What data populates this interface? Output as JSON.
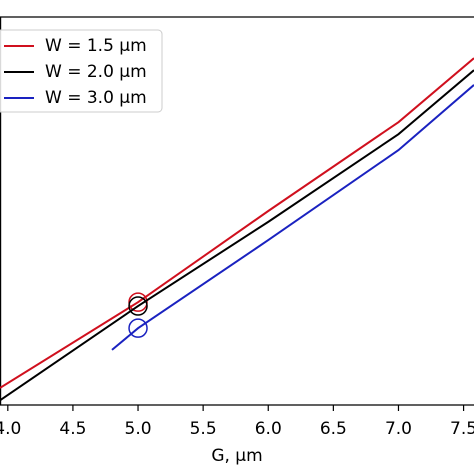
{
  "chart_data": {
    "type": "line",
    "x_label": "G, μm",
    "xlim": [
      3.94,
      7.58
    ],
    "xticks": [
      {
        "value": 4.0,
        "label": "4.0"
      },
      4.5,
      {
        "value": 5.0,
        "label": "5.0"
      },
      5.5,
      {
        "value": 6.0,
        "label": "6.0"
      },
      6.5,
      {
        "value": 7.0,
        "label": "7.0"
      },
      7.5
    ],
    "ylim": [
      0,
      1
    ],
    "highlight_x": 5.0,
    "legend": "upper left",
    "series": [
      {
        "name": "W = 1.5 μm",
        "color": "#d0101e",
        "x": [
          3.94,
          5.0,
          6.0,
          7.0,
          7.58
        ],
        "values": [
          0.044,
          0.265,
          0.5,
          0.729,
          0.894
        ]
      },
      {
        "name": "W = 2.0 μm",
        "color": "#000000",
        "x": [
          3.94,
          5.0,
          6.0,
          7.0,
          7.58
        ],
        "values": [
          0.012,
          0.255,
          0.472,
          0.698,
          0.863
        ]
      },
      {
        "name": "W = 3.0 μm",
        "color": "#1a22c0",
        "x": [
          4.8,
          5.0,
          6.0,
          7.0,
          7.58
        ],
        "values": [
          0.142,
          0.198,
          0.425,
          0.657,
          0.825
        ]
      }
    ]
  }
}
